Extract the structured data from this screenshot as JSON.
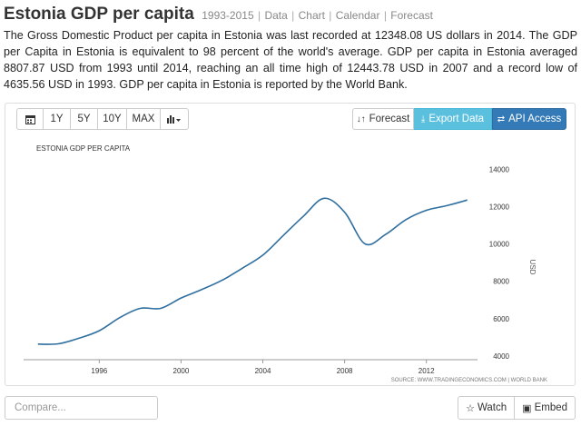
{
  "header": {
    "title": "Estonia GDP per capita",
    "range": "1993-2015",
    "links": [
      "Data",
      "Chart",
      "Calendar",
      "Forecast"
    ],
    "separator": "|"
  },
  "description": "The Gross Domestic Product per capita in Estonia was last recorded at 12348.08 US dollars in 2014. The GDP per Capita in Estonia is equivalent to 98 percent of the world's average. GDP per capita in Estonia averaged 8807.87 USD from 1993 until 2014, reaching an all time high of 12443.78 USD in 2007 and a record low of 4635.56 USD in 1993. GDP per capita in Estonia is reported by the World Bank.",
  "toolbar": {
    "calendar_icon": "calendar-icon",
    "ranges": [
      "1Y",
      "5Y",
      "10Y",
      "MAX"
    ],
    "chart_type_icon": "bar-chart-icon",
    "forecast_label": "Forecast",
    "export_label": "Export Data",
    "api_label": "API Access"
  },
  "footer": {
    "compare_placeholder": "Compare...",
    "watch_label": "Watch",
    "embed_label": "Embed"
  },
  "colors": {
    "line": "#2f6f9f",
    "export": "#5bc0de",
    "api": "#337ab7"
  },
  "chart_data": {
    "type": "line",
    "title": "ESTONIA GDP PER CAPITA",
    "ylabel": "USD",
    "source": "SOURCE: WWW.TRADINGECONOMICS.COM | WORLD BANK",
    "x": [
      1993,
      1994,
      1995,
      1996,
      1997,
      1998,
      1999,
      2000,
      2001,
      2002,
      2003,
      2004,
      2005,
      2006,
      2007,
      2008,
      2009,
      2010,
      2011,
      2012,
      2013,
      2014
    ],
    "y": [
      4635.56,
      4650,
      4950,
      5350,
      6050,
      6550,
      6550,
      7100,
      7550,
      8050,
      8700,
      9400,
      10450,
      11500,
      12443.78,
      11700,
      10000,
      10500,
      11300,
      11800,
      12050,
      12348.08
    ],
    "xticks": [
      1996,
      2000,
      2004,
      2008,
      2012
    ],
    "yticks": [
      4000,
      6000,
      8000,
      10000,
      12000,
      14000
    ],
    "xlim": [
      1992.3,
      2014.5
    ],
    "ylim": [
      3800,
      14500
    ],
    "grid": false
  }
}
